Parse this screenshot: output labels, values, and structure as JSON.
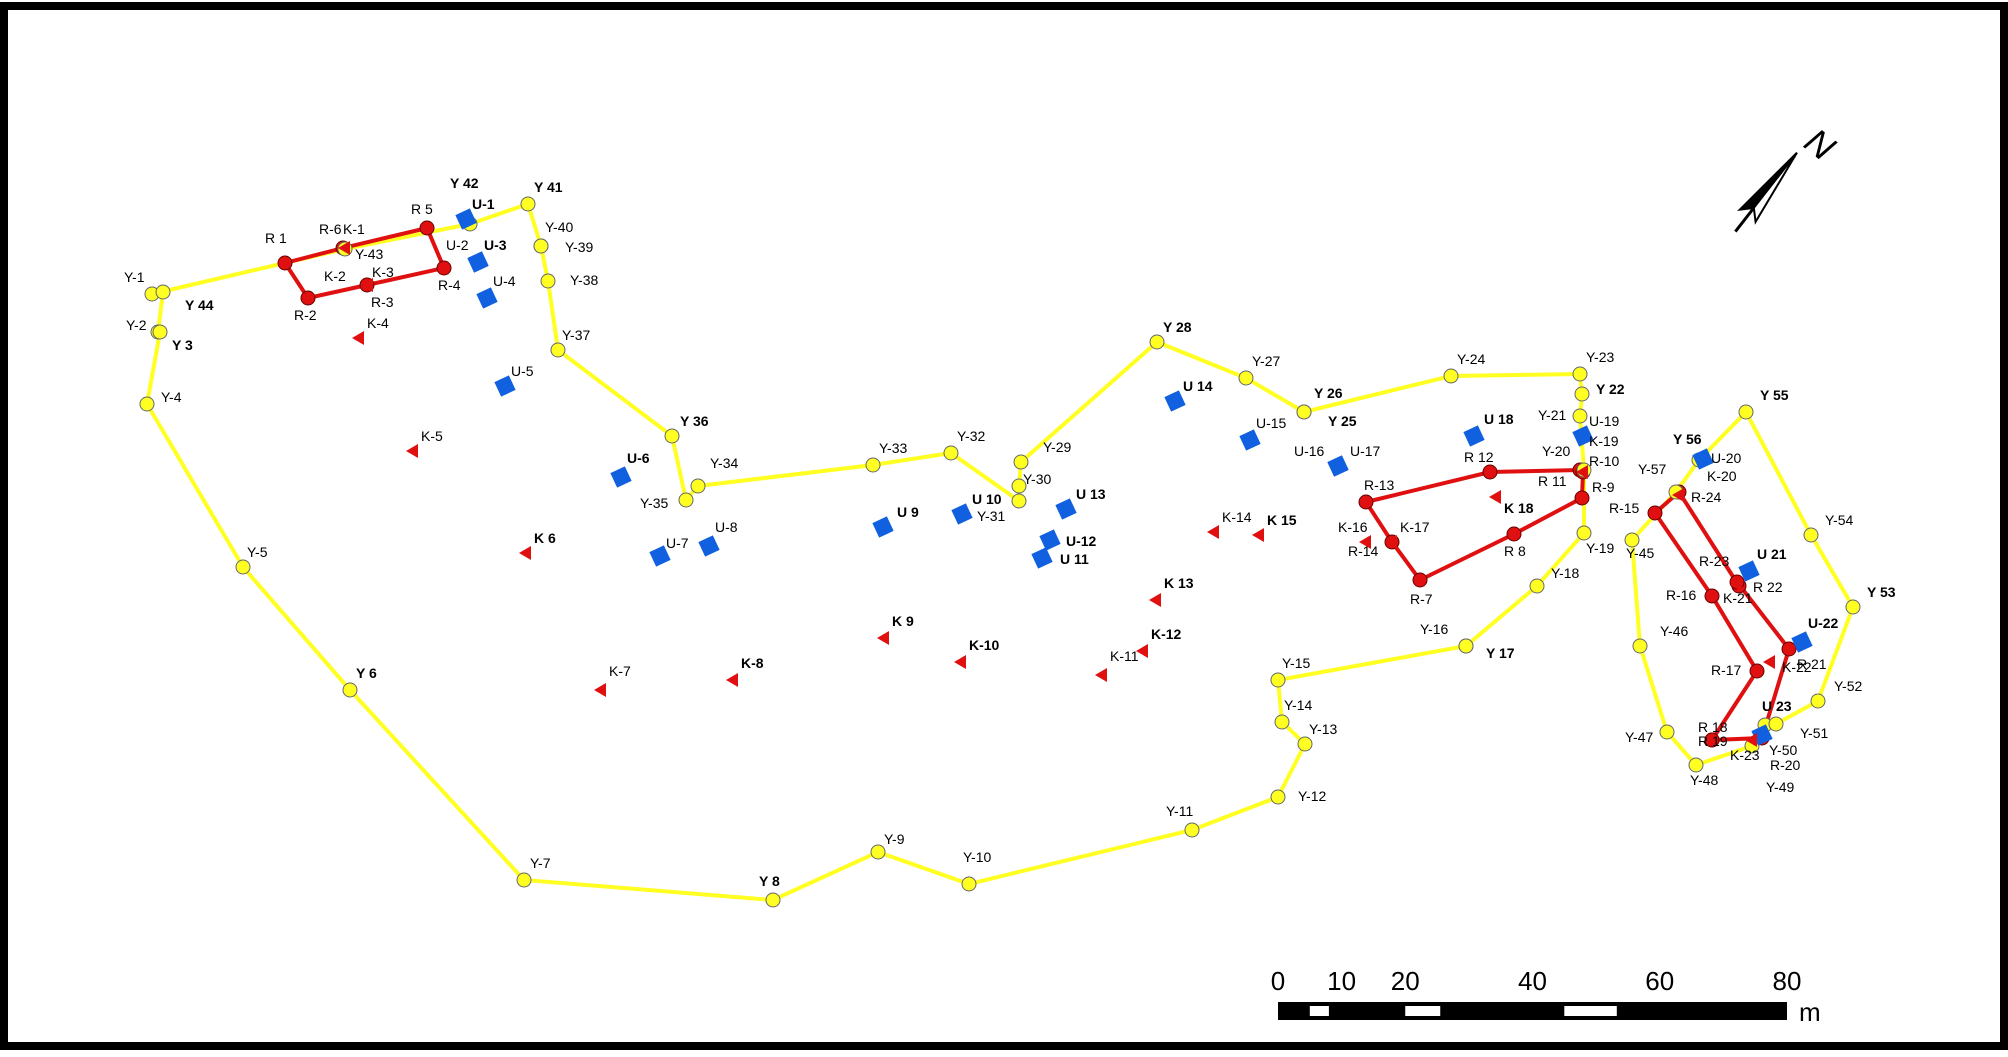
{
  "map": {
    "boundary_color": "#ffff22",
    "plot_color": "#e01010",
    "u_color": "#1060e0",
    "k_color": "#e01010"
  },
  "boundary": [
    {
      "label": "Y-1"
    },
    {
      "label": "Y 44"
    },
    {
      "label": "Y-2"
    },
    {
      "label": "Y 3"
    },
    {
      "label": "Y-4"
    },
    {
      "label": "Y-5"
    },
    {
      "label": "Y 6"
    },
    {
      "label": "Y-7"
    },
    {
      "label": "Y 8"
    },
    {
      "label": "Y-9"
    },
    {
      "label": "Y-10"
    },
    {
      "label": "Y-11"
    },
    {
      "label": "Y-12"
    },
    {
      "label": "Y-13"
    },
    {
      "label": "Y-14"
    },
    {
      "label": "Y-15"
    },
    {
      "label": "Y-16"
    },
    {
      "label": "Y 17"
    },
    {
      "label": "Y-18"
    },
    {
      "label": "Y-19"
    },
    {
      "label": "Y-20"
    },
    {
      "label": "Y-21"
    },
    {
      "label": "Y 22"
    },
    {
      "label": "Y-23"
    },
    {
      "label": "Y-24"
    },
    {
      "label": "Y 25"
    },
    {
      "label": "Y 26"
    },
    {
      "label": "Y-27"
    },
    {
      "label": "Y 28"
    },
    {
      "label": "Y-29"
    },
    {
      "label": "Y-30"
    },
    {
      "label": "Y-31"
    },
    {
      "label": "Y-32"
    },
    {
      "label": "Y-33"
    },
    {
      "label": "Y-34"
    },
    {
      "label": "Y-35"
    },
    {
      "label": "Y 36"
    },
    {
      "label": "Y-37"
    },
    {
      "label": "Y-38"
    },
    {
      "label": "Y-39"
    },
    {
      "label": "Y-40"
    },
    {
      "label": "Y 41"
    },
    {
      "label": "Y 42"
    },
    {
      "label": "Y-43"
    }
  ],
  "east_boundary": [
    {
      "label": "Y-45"
    },
    {
      "label": "Y-46"
    },
    {
      "label": "Y-47"
    },
    {
      "label": "Y-48"
    },
    {
      "label": "Y-49"
    },
    {
      "label": "Y-50"
    },
    {
      "label": "Y-51"
    },
    {
      "label": "Y-52"
    },
    {
      "label": "Y 53"
    },
    {
      "label": "Y-54"
    },
    {
      "label": "Y 55"
    },
    {
      "label": "Y 56"
    },
    {
      "label": "Y-57"
    }
  ],
  "plots": [
    {
      "name": "plot-1",
      "points": [
        {
          "label": "R 1"
        },
        {
          "label": "R 5"
        },
        {
          "label": "R-4"
        },
        {
          "label": "R-3"
        },
        {
          "label": "R-2"
        },
        {
          "label": "R-6"
        }
      ]
    },
    {
      "name": "plot-2",
      "points": [
        {
          "label": "R-13"
        },
        {
          "label": "R 12"
        },
        {
          "label": "R 11"
        },
        {
          "label": "R-10"
        },
        {
          "label": "R-9"
        },
        {
          "label": "R 8"
        },
        {
          "label": "R-7"
        },
        {
          "label": "R-14"
        }
      ]
    },
    {
      "name": "plot-3",
      "points": [
        {
          "label": "R-15"
        },
        {
          "label": "R-24"
        },
        {
          "label": "R-23"
        },
        {
          "label": "R 22"
        },
        {
          "label": "R 21"
        },
        {
          "label": "R-20"
        },
        {
          "label": "R 19"
        },
        {
          "label": "R 18"
        },
        {
          "label": "R-17"
        },
        {
          "label": "R-16"
        }
      ]
    }
  ],
  "u_markers": [
    {
      "label": "U-1"
    },
    {
      "label": "U-2"
    },
    {
      "label": "U-3"
    },
    {
      "label": "U-4"
    },
    {
      "label": "U-5"
    },
    {
      "label": "U-6"
    },
    {
      "label": "U-7"
    },
    {
      "label": "U-8"
    },
    {
      "label": "U 9"
    },
    {
      "label": "U 10"
    },
    {
      "label": "U 11"
    },
    {
      "label": "U-12"
    },
    {
      "label": "U 13"
    },
    {
      "label": "U 14"
    },
    {
      "label": "U-15"
    },
    {
      "label": "U-16"
    },
    {
      "label": "U-17"
    },
    {
      "label": "U 18"
    },
    {
      "label": "U-19"
    },
    {
      "label": "U-20"
    },
    {
      "label": "U 21"
    },
    {
      "label": "U-22"
    },
    {
      "label": "U 23"
    }
  ],
  "k_markers": [
    {
      "label": "K-1"
    },
    {
      "label": "K-2"
    },
    {
      "label": "K-3"
    },
    {
      "label": "K-4"
    },
    {
      "label": "K-5"
    },
    {
      "label": "K 6"
    },
    {
      "label": "K-7"
    },
    {
      "label": "K-8"
    },
    {
      "label": "K 9"
    },
    {
      "label": "K-10"
    },
    {
      "label": "K-11"
    },
    {
      "label": "K-12"
    },
    {
      "label": "K 13"
    },
    {
      "label": "K-14"
    },
    {
      "label": "K 15"
    },
    {
      "label": "K-16"
    },
    {
      "label": "K-17"
    },
    {
      "label": "K 18"
    },
    {
      "label": "K-19"
    },
    {
      "label": "K-20"
    },
    {
      "label": "K-21"
    },
    {
      "label": "K-22"
    },
    {
      "label": "K-23"
    }
  ],
  "scale_bar": {
    "ticks": [
      "0",
      "10",
      "20",
      "40",
      "60",
      "80"
    ],
    "unit": "m"
  },
  "north_arrow": {
    "label": "N",
    "icon": "north-arrow-icon"
  }
}
